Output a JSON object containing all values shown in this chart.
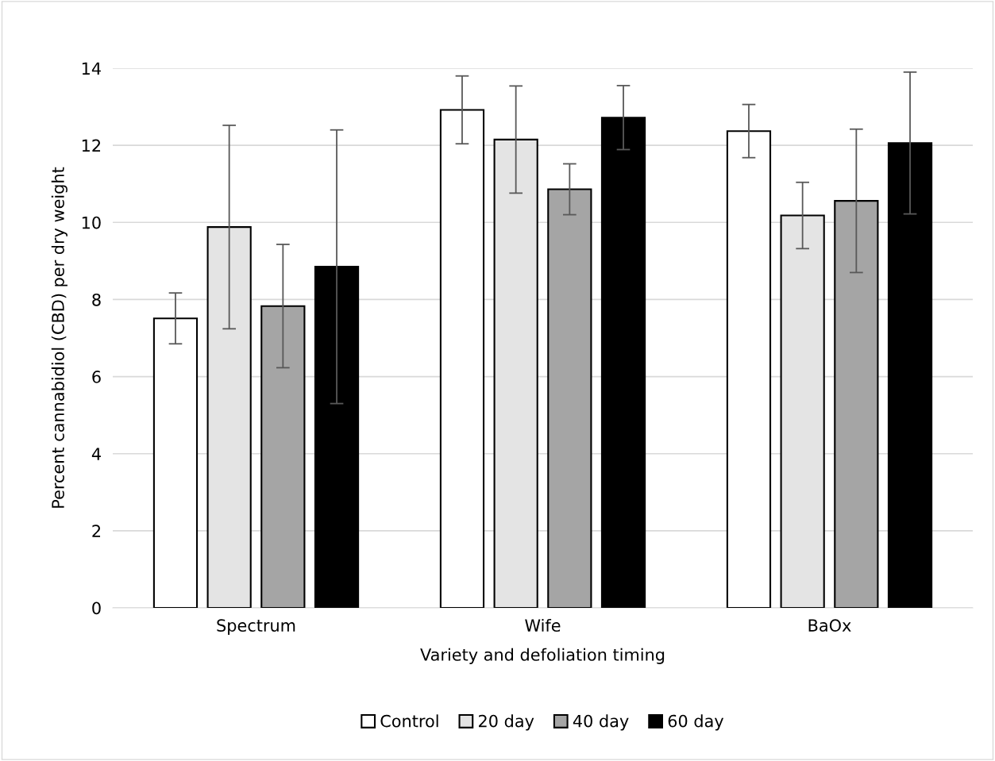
{
  "chart_data": {
    "type": "bar",
    "xlabel": "Variety and defoliation timing",
    "ylabel": "Percent cannabidiol (CBD) per dry weight",
    "categories": [
      "Spectrum",
      "Wife",
      "BaOx"
    ],
    "series": [
      {
        "name": "Control",
        "color": "#ffffff",
        "values": [
          7.51,
          12.92,
          12.37
        ],
        "errors": [
          0.66,
          0.88,
          0.69
        ]
      },
      {
        "name": "20 day",
        "color": "#e4e4e4",
        "values": [
          9.88,
          12.15,
          10.18
        ],
        "errors": [
          2.64,
          1.39,
          0.86
        ]
      },
      {
        "name": "40 day",
        "color": "#a5a5a5",
        "values": [
          7.83,
          10.86,
          10.56
        ],
        "errors": [
          1.6,
          0.66,
          1.86
        ]
      },
      {
        "name": "60 day",
        "color": "#000000",
        "values": [
          8.85,
          12.72,
          12.06
        ],
        "errors": [
          3.55,
          0.83,
          1.84
        ]
      }
    ],
    "ylim": [
      0,
      14
    ],
    "yticks": [
      0,
      2,
      4,
      6,
      8,
      10,
      12,
      14
    ],
    "grid": "y",
    "legend": "bottom"
  }
}
